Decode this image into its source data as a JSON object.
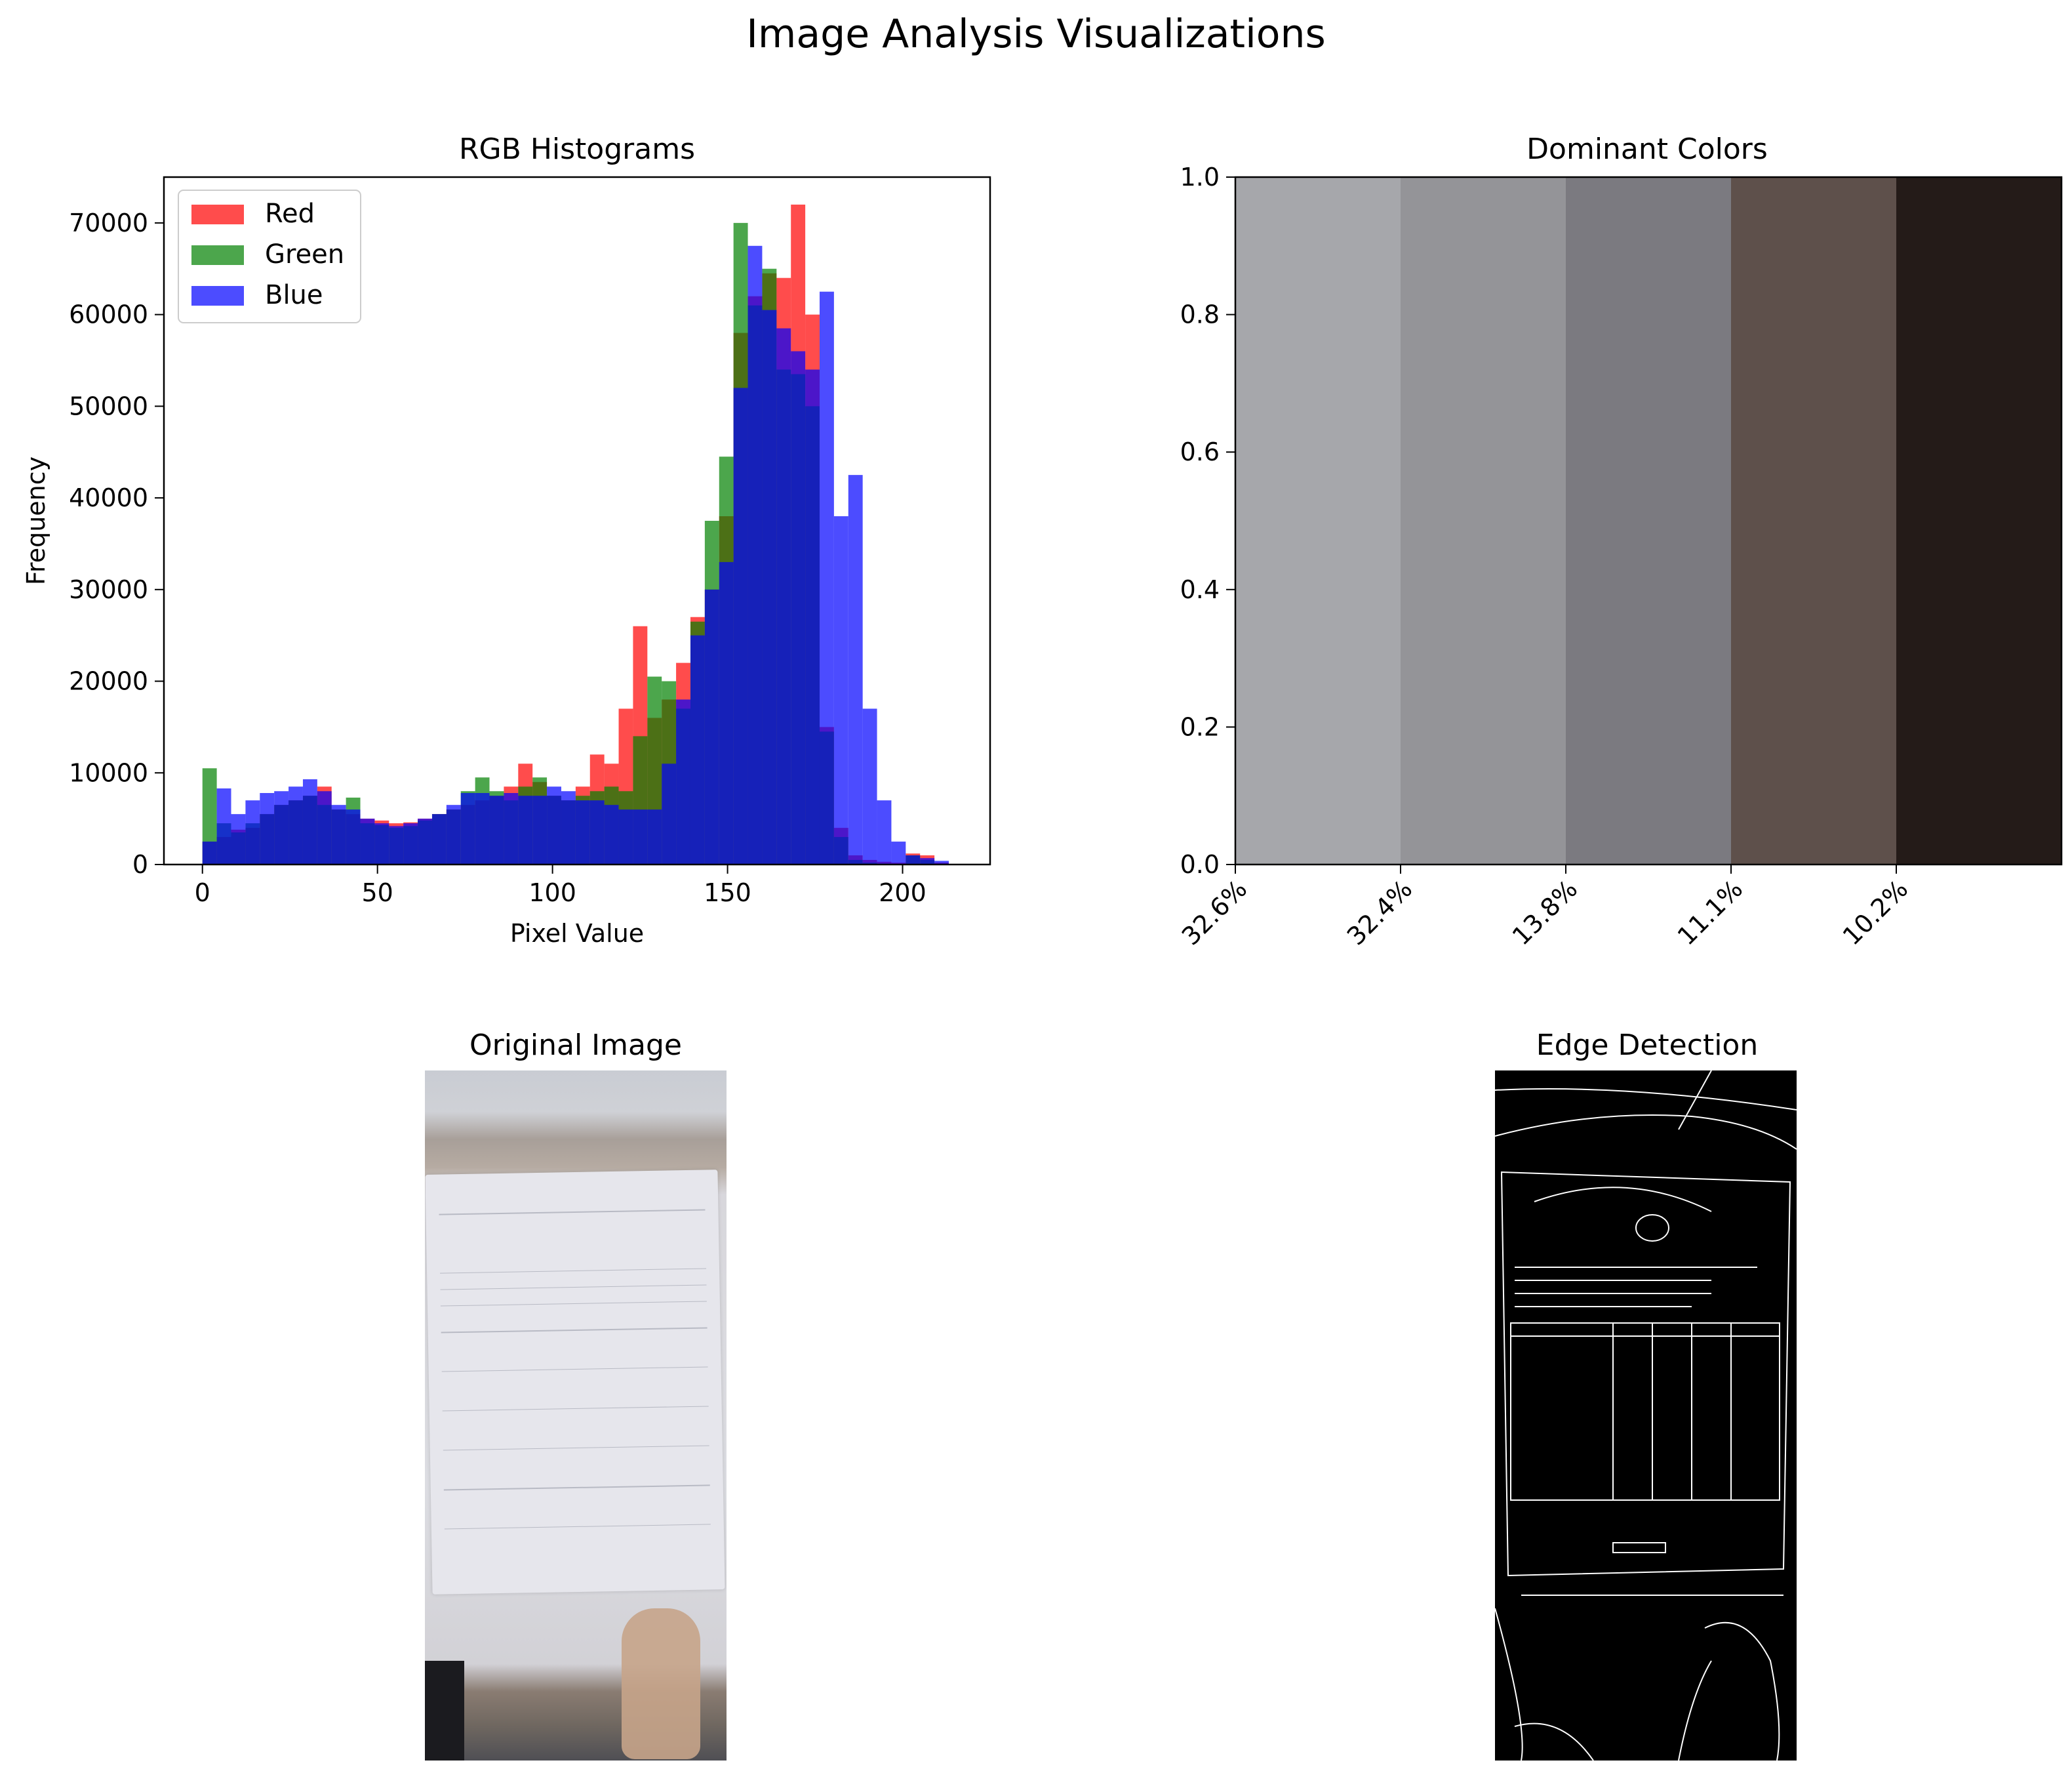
{
  "figure": {
    "title": "Image Analysis Visualizations"
  },
  "chart_data": [
    {
      "type": "bar",
      "title": "RGB Histograms",
      "xlabel": "Pixel Value",
      "ylabel": "Frequency",
      "xlim": [
        -11,
        225
      ],
      "ylim": [
        0,
        75000
      ],
      "xticks": [
        0,
        50,
        100,
        150,
        200
      ],
      "yticks": [
        0,
        10000,
        20000,
        30000,
        40000,
        50000,
        60000,
        70000
      ],
      "legend": "upper-left",
      "bin_width": 4.1,
      "series": [
        {
          "name": "Red",
          "color": "#ff0000",
          "x": [
            0,
            4.1,
            8.2,
            12.3,
            16.4,
            20.5,
            24.6,
            28.7,
            32.8,
            36.9,
            41,
            45.1,
            49.2,
            53.3,
            57.4,
            61.5,
            65.6,
            69.7,
            73.8,
            77.9,
            82,
            86.1,
            90.2,
            94.3,
            98.4,
            102.5,
            106.6,
            110.7,
            114.8,
            118.9,
            123,
            127.1,
            131.2,
            135.3,
            139.4,
            143.5,
            147.6,
            151.7,
            155.8,
            159.9,
            164,
            168.1,
            172.2,
            176.3,
            180.4,
            184.5,
            188.6,
            192.7,
            196.8,
            200.9,
            205,
            209.1
          ],
          "values": [
            2500,
            3000,
            3800,
            4000,
            5500,
            6500,
            7000,
            7500,
            8500,
            6000,
            5500,
            5000,
            4800,
            4500,
            4600,
            5000,
            5500,
            6000,
            6500,
            7000,
            7500,
            8500,
            11000,
            9000,
            7500,
            7000,
            8500,
            12000,
            11000,
            17000,
            26000,
            16000,
            18000,
            22000,
            27000,
            30000,
            38000,
            58000,
            62000,
            64500,
            64000,
            72000,
            60000,
            15000,
            4000,
            1000,
            500,
            300,
            200,
            1200,
            1000,
            200
          ]
        },
        {
          "name": "Green",
          "color": "#008000",
          "x": [
            0,
            4.1,
            8.2,
            12.3,
            16.4,
            20.5,
            24.6,
            28.7,
            32.8,
            36.9,
            41,
            45.1,
            49.2,
            53.3,
            57.4,
            61.5,
            65.6,
            69.7,
            73.8,
            77.9,
            82,
            86.1,
            90.2,
            94.3,
            98.4,
            102.5,
            106.6,
            110.7,
            114.8,
            118.9,
            123,
            127.1,
            131.2,
            135.3,
            139.4,
            143.5,
            147.6,
            151.7,
            155.8,
            159.9,
            164,
            168.1,
            172.2,
            176.3,
            180.4,
            184.5,
            188.6,
            192.7,
            196.8,
            200.9,
            205,
            209.1
          ],
          "values": [
            10500,
            4500,
            3500,
            4500,
            5500,
            6500,
            7000,
            7500,
            6500,
            6000,
            7300,
            4500,
            4300,
            4000,
            4200,
            4800,
            5500,
            6000,
            8000,
            9500,
            8000,
            7000,
            8500,
            9500,
            7500,
            7000,
            7500,
            8000,
            8500,
            8000,
            14000,
            20500,
            20000,
            17000,
            26500,
            37500,
            44500,
            70000,
            61000,
            65000,
            54000,
            53500,
            50000,
            14500,
            3000,
            500,
            200,
            100,
            50,
            1000,
            500,
            100
          ]
        },
        {
          "name": "Blue",
          "color": "#0000ff",
          "x": [
            0,
            4.1,
            8.2,
            12.3,
            16.4,
            20.5,
            24.6,
            28.7,
            32.8,
            36.9,
            41,
            45.1,
            49.2,
            53.3,
            57.4,
            61.5,
            65.6,
            69.7,
            73.8,
            77.9,
            82,
            86.1,
            90.2,
            94.3,
            98.4,
            102.5,
            106.6,
            110.7,
            114.8,
            118.9,
            123,
            127.1,
            131.2,
            135.3,
            139.4,
            143.5,
            147.6,
            151.7,
            155.8,
            159.9,
            164,
            168.1,
            172.2,
            176.3,
            180.4,
            184.5,
            188.6,
            192.7,
            196.8,
            200.9,
            205,
            209.1
          ],
          "values": [
            2500,
            8300,
            5500,
            7000,
            7800,
            8000,
            8500,
            9300,
            8000,
            6500,
            6000,
            5000,
            4500,
            4200,
            4500,
            5000,
            5500,
            6500,
            7800,
            7800,
            7500,
            7800,
            7500,
            7500,
            8500,
            8000,
            7000,
            7000,
            6500,
            6000,
            6000,
            6000,
            11000,
            18000,
            25000,
            30000,
            33000,
            52000,
            67500,
            60500,
            58500,
            56000,
            54000,
            62500,
            38000,
            42500,
            17000,
            7000,
            2500,
            1000,
            700,
            400
          ]
        }
      ]
    },
    {
      "type": "bar",
      "title": "Dominant Colors",
      "ylim": [
        0,
        1
      ],
      "yticks": [
        "0.0",
        "0.2",
        "0.4",
        "0.6",
        "0.8",
        "1.0"
      ],
      "categories": [
        "32.6%",
        "32.4%",
        "13.8%",
        "11.1%",
        "10.2%"
      ],
      "values": [
        1,
        1,
        1,
        1,
        1
      ],
      "colors": [
        "#a6a7ab",
        "#949498",
        "#7b7a80",
        "#5e504b",
        "#241b18"
      ]
    }
  ],
  "images": {
    "original_title": "Original Image",
    "edge_title": "Edge Detection"
  }
}
